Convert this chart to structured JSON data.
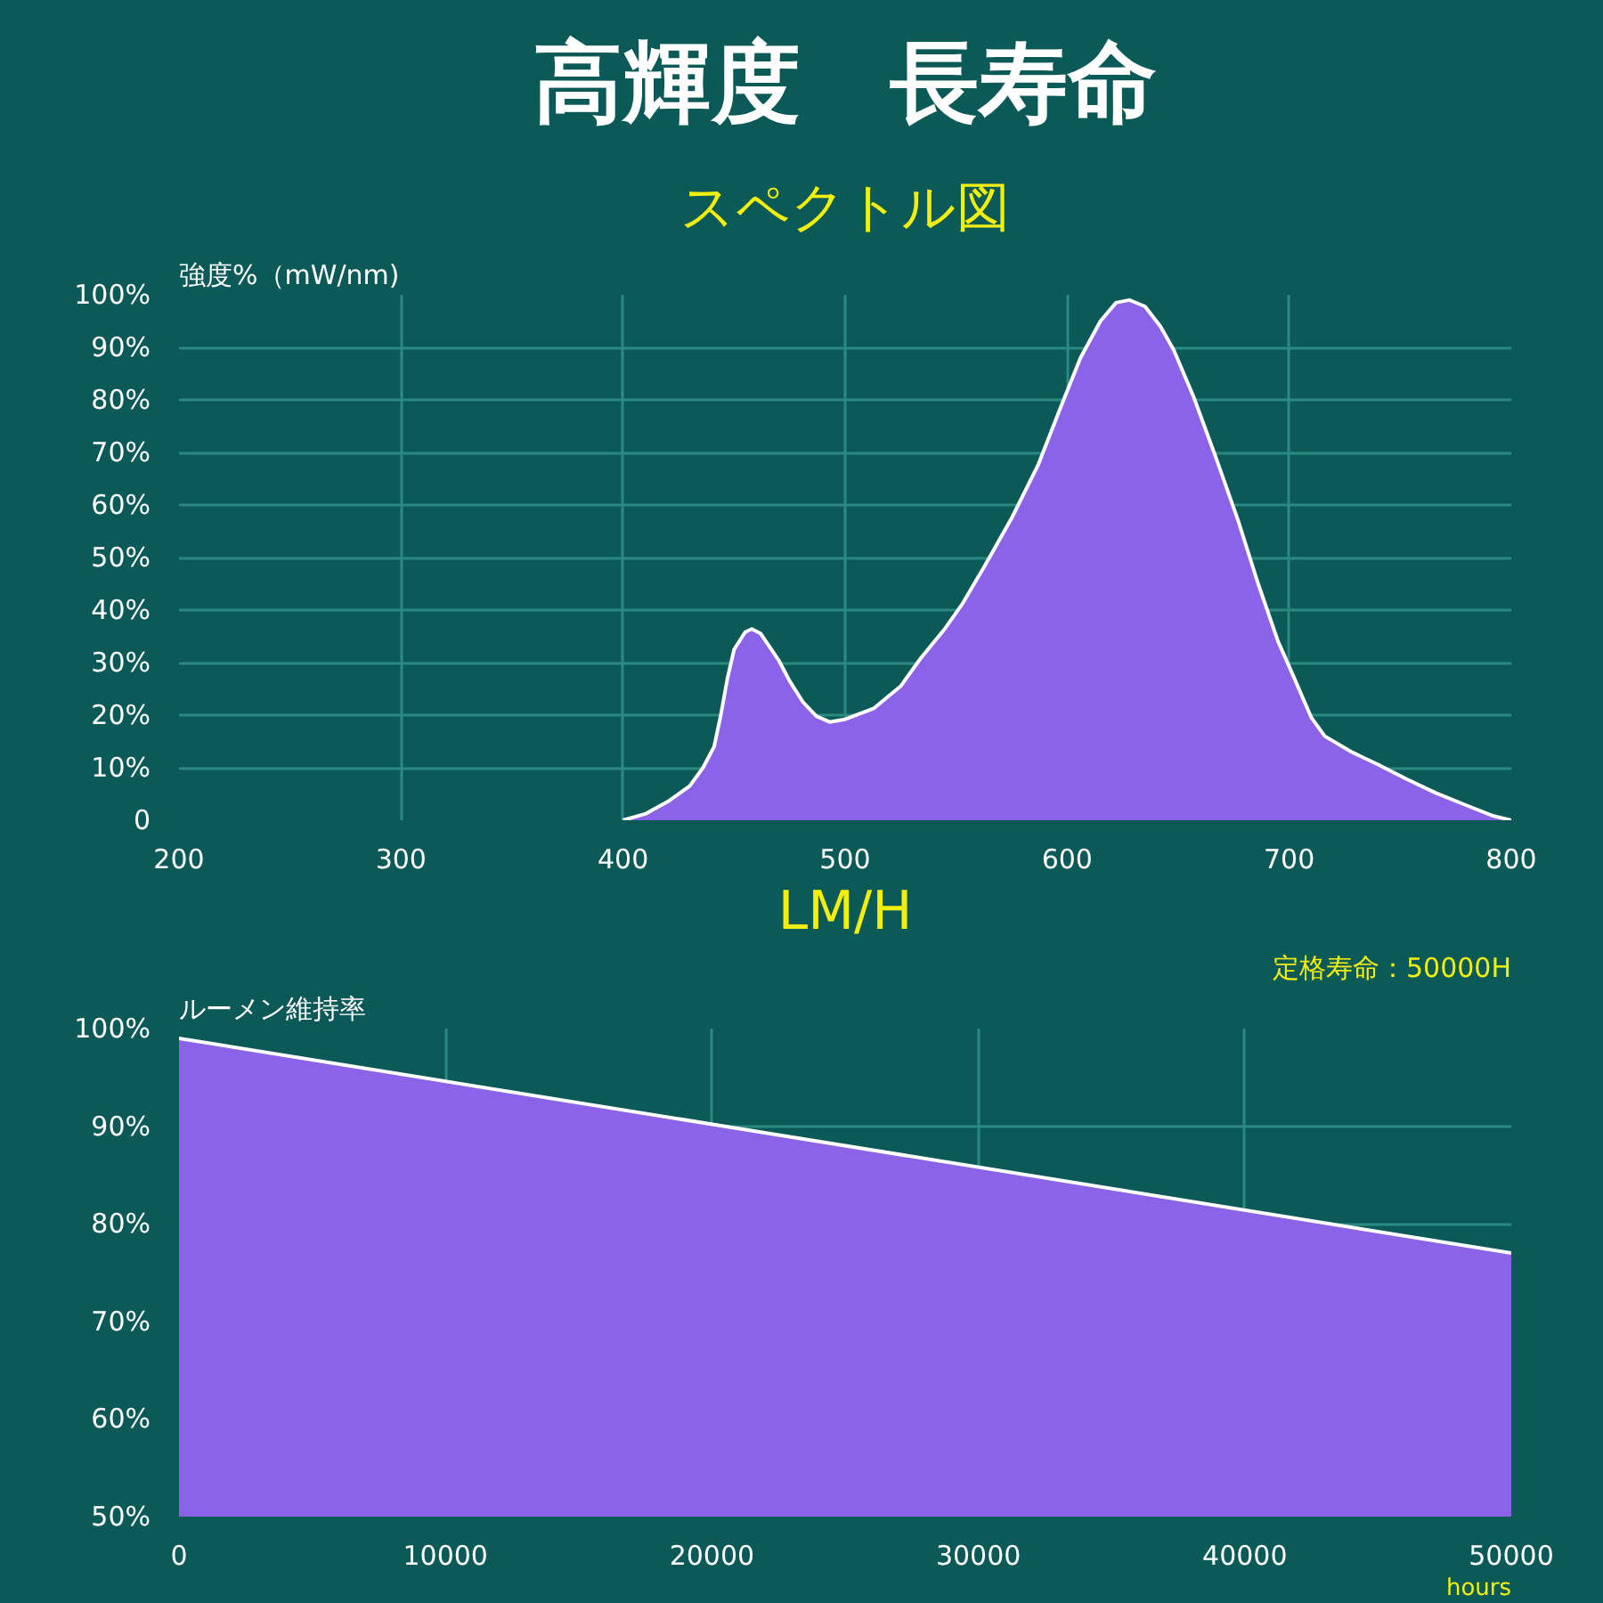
{
  "chart_data": [
    {
      "type": "area",
      "title": "高輝度　長寿命",
      "subtitle": "スペクトル図",
      "ylabel": "強度%（mW/nm)",
      "x": [
        400,
        410,
        420,
        430,
        436,
        441,
        444,
        447,
        450,
        455,
        458,
        462,
        466,
        470,
        475,
        481,
        487,
        493,
        500,
        513,
        525,
        534,
        545,
        553,
        563,
        575,
        587,
        597,
        606,
        615,
        622,
        628,
        635,
        642,
        648,
        657,
        667,
        677,
        686,
        695,
        702,
        710,
        716,
        728,
        740,
        753,
        766,
        780,
        792,
        800
      ],
      "values": [
        0,
        1.2,
        3.5,
        6.5,
        10,
        14,
        20,
        27,
        32.5,
        35.8,
        36.4,
        35.5,
        33,
        30.5,
        26.5,
        22.5,
        19.8,
        18.7,
        19.2,
        21.3,
        25.5,
        30.8,
        36.5,
        41.3,
        48.5,
        57.5,
        67.7,
        78.5,
        88,
        95,
        98.5,
        99,
        97.8,
        94,
        89.5,
        80.5,
        69,
        57,
        45,
        34,
        27.3,
        19.5,
        16,
        13,
        10.6,
        7.8,
        5.2,
        2.8,
        0.8,
        0
      ],
      "color": "#8a63e9",
      "xlim": [
        200,
        800
      ],
      "xticks": [
        200,
        300,
        400,
        500,
        600,
        700,
        800
      ],
      "ylim": [
        0,
        100
      ],
      "yticks": [
        0,
        {
          "value": 10,
          "label": "10%"
        },
        {
          "value": 20,
          "label": "20%"
        },
        {
          "value": 30,
          "label": "30%"
        },
        {
          "value": 40,
          "label": "40%"
        },
        {
          "value": 50,
          "label": "50%"
        },
        {
          "value": 60,
          "label": "60%"
        },
        {
          "value": 70,
          "label": "70%"
        },
        {
          "value": 80,
          "label": "80%"
        },
        {
          "value": 90,
          "label": "90%"
        },
        {
          "value": 100,
          "label": "100%"
        }
      ],
      "grid": true
    },
    {
      "type": "area",
      "title": "LM/H",
      "ylabel": "ルーメン維持率",
      "xlabel": "hours",
      "annotations": [
        "定格寿命：50000H"
      ],
      "x": [
        0,
        50000
      ],
      "values": [
        99,
        77
      ],
      "color": "#8a63e9",
      "xlim": [
        0,
        50000
      ],
      "xticks": [
        0,
        10000,
        20000,
        30000,
        40000,
        50000
      ],
      "ylim": [
        50,
        100
      ],
      "yticks": [
        {
          "value": 50,
          "label": "50%"
        },
        {
          "value": 60,
          "label": "60%"
        },
        {
          "value": 70,
          "label": "70%"
        },
        {
          "value": 80,
          "label": "80%"
        },
        {
          "value": 90,
          "label": "90%"
        },
        {
          "value": 100,
          "label": "100%"
        }
      ],
      "grid": true
    }
  ]
}
